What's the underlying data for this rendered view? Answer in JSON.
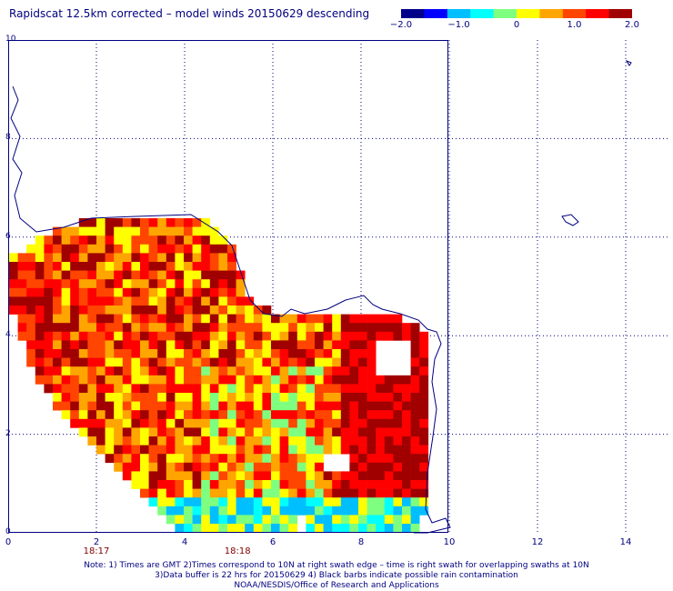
{
  "title": "Rapidscat 12.5km corrected – model winds 20150629 descending",
  "colorbar": {
    "colors": [
      "#00008b",
      "#0000ff",
      "#00bfff",
      "#00ffff",
      "#7fff7f",
      "#ffff00",
      "#ffa500",
      "#ff4500",
      "#ff0000",
      "#a00000"
    ],
    "ticks": [
      {
        "value": -2.0,
        "label": "−2.0"
      },
      {
        "value": -1.0,
        "label": "−1.0"
      },
      {
        "value": 0,
        "label": "0"
      },
      {
        "value": 1.0,
        "label": "1.0"
      },
      {
        "value": 2.0,
        "label": "2.0"
      }
    ],
    "range": [
      -2.0,
      2.0
    ]
  },
  "axes": {
    "y_labels": [
      "10",
      "8",
      "6",
      "4",
      "2",
      "0"
    ],
    "x_labels": [
      "0",
      "2",
      "4",
      "6",
      "8",
      "10",
      "12",
      "14"
    ],
    "x_range": [
      0,
      14.5
    ],
    "y_range": [
      0,
      10
    ]
  },
  "time_labels": [
    {
      "x": 2,
      "label": "18:17"
    },
    {
      "x": 5.2,
      "label": "18:18"
    }
  ],
  "notes": {
    "line1": "Note: 1) Times are GMT 2)Times correspond to 10N at right swath edge – time is right swath for overlapping swaths at 10N",
    "line2": "3)Data buffer is 22 hrs for 20150629 4) Black barbs indicate possible rain contamination",
    "line3": "NOAA/NESDIS/Office of Research and Applications"
  }
}
